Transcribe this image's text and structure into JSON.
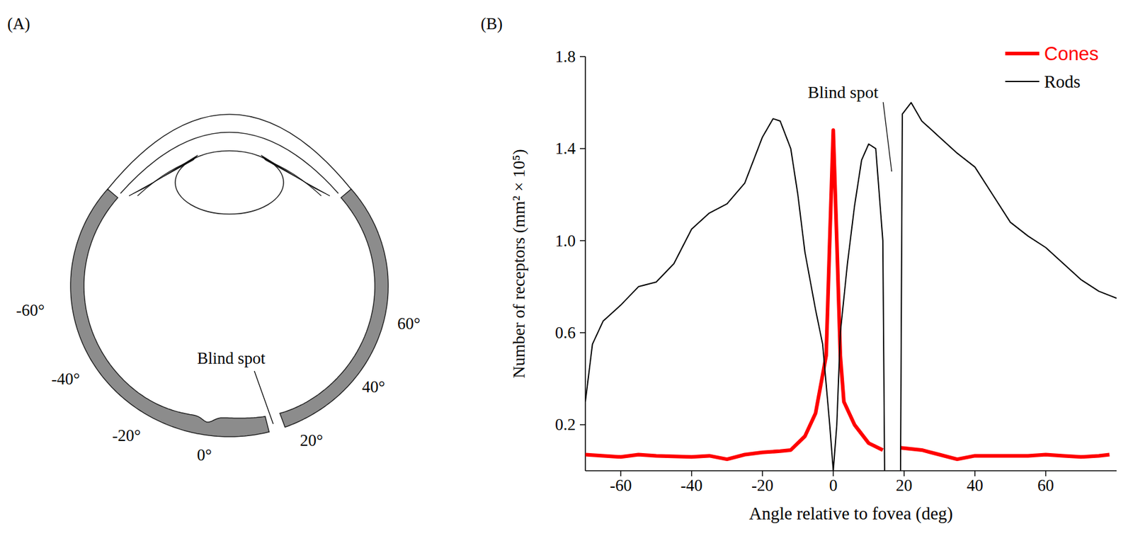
{
  "panel_labels": [
    "(A)",
    "(B)"
  ],
  "diagram": {
    "angle_labels": [
      "-60°",
      "-40°",
      "-20°",
      "0°",
      "20°",
      "40°",
      "60°"
    ],
    "blind_spot_label": "Blind spot"
  },
  "chart_data": {
    "type": "line",
    "x_label": "Angle relative to fovea (deg)",
    "y_label": "Number of receptors (mm² × 10⁵)",
    "annotation": "Blind spot",
    "xlim": [
      -70,
      80
    ],
    "xticks": [
      -60,
      -40,
      -20,
      0,
      20,
      40,
      60
    ],
    "ylim": [
      0,
      1.8
    ],
    "yticks": [
      0.2,
      0.6,
      {
        "value": 1,
        "label": "1.0"
      },
      1.4,
      1.8
    ],
    "legend": "upper right",
    "series": [
      {
        "name": "Cones",
        "color": "#ff0000",
        "line_style": "solid",
        "x": [
          -70,
          -60,
          -55,
          -50,
          -40,
          -35,
          -30,
          -25,
          -20,
          -15,
          -12,
          -8,
          -5,
          -2,
          -1,
          0,
          1,
          2,
          3,
          6,
          10,
          14,
          17,
          19,
          25,
          30,
          35,
          40,
          45,
          50,
          55,
          60,
          65,
          70,
          75,
          78
        ],
        "values": [
          0.07,
          0.06,
          0.07,
          0.065,
          0.06,
          0.065,
          0.05,
          0.07,
          0.08,
          0.085,
          0.09,
          0.15,
          0.25,
          0.5,
          1.0,
          1.48,
          1.0,
          0.5,
          0.3,
          0.2,
          0.12,
          0.09,
          null,
          0.1,
          0.09,
          0.07,
          0.05,
          0.065,
          0.065,
          0.065,
          0.065,
          0.07,
          0.065,
          0.06,
          0.065,
          0.07
        ]
      },
      {
        "name": "Rods",
        "color": "#000000",
        "line_style": "solid",
        "x": [
          -70,
          -68,
          -65,
          -60,
          -55,
          -50,
          -45,
          -40,
          -35,
          -30,
          -25,
          -20,
          -17,
          -15,
          -12,
          -10,
          -8,
          -5,
          -3,
          -1,
          0,
          1,
          2,
          4,
          6,
          8,
          10,
          12,
          13,
          14,
          14.5,
          17,
          19,
          19.5,
          22,
          25,
          30,
          35,
          40,
          45,
          50,
          55,
          60,
          65,
          70,
          75,
          80
        ],
        "values": [
          0.3,
          0.55,
          0.65,
          0.72,
          0.8,
          0.82,
          0.9,
          1.05,
          1.12,
          1.16,
          1.25,
          1.45,
          1.53,
          1.52,
          1.4,
          1.2,
          0.95,
          0.7,
          0.55,
          0.2,
          0,
          0.2,
          0.6,
          0.9,
          1.15,
          1.35,
          1.42,
          1.4,
          1.2,
          1.0,
          0,
          null,
          0,
          1.55,
          1.6,
          1.52,
          1.45,
          1.38,
          1.32,
          1.2,
          1.08,
          1.02,
          0.97,
          0.9,
          0.83,
          0.78,
          0.75
        ]
      }
    ]
  }
}
